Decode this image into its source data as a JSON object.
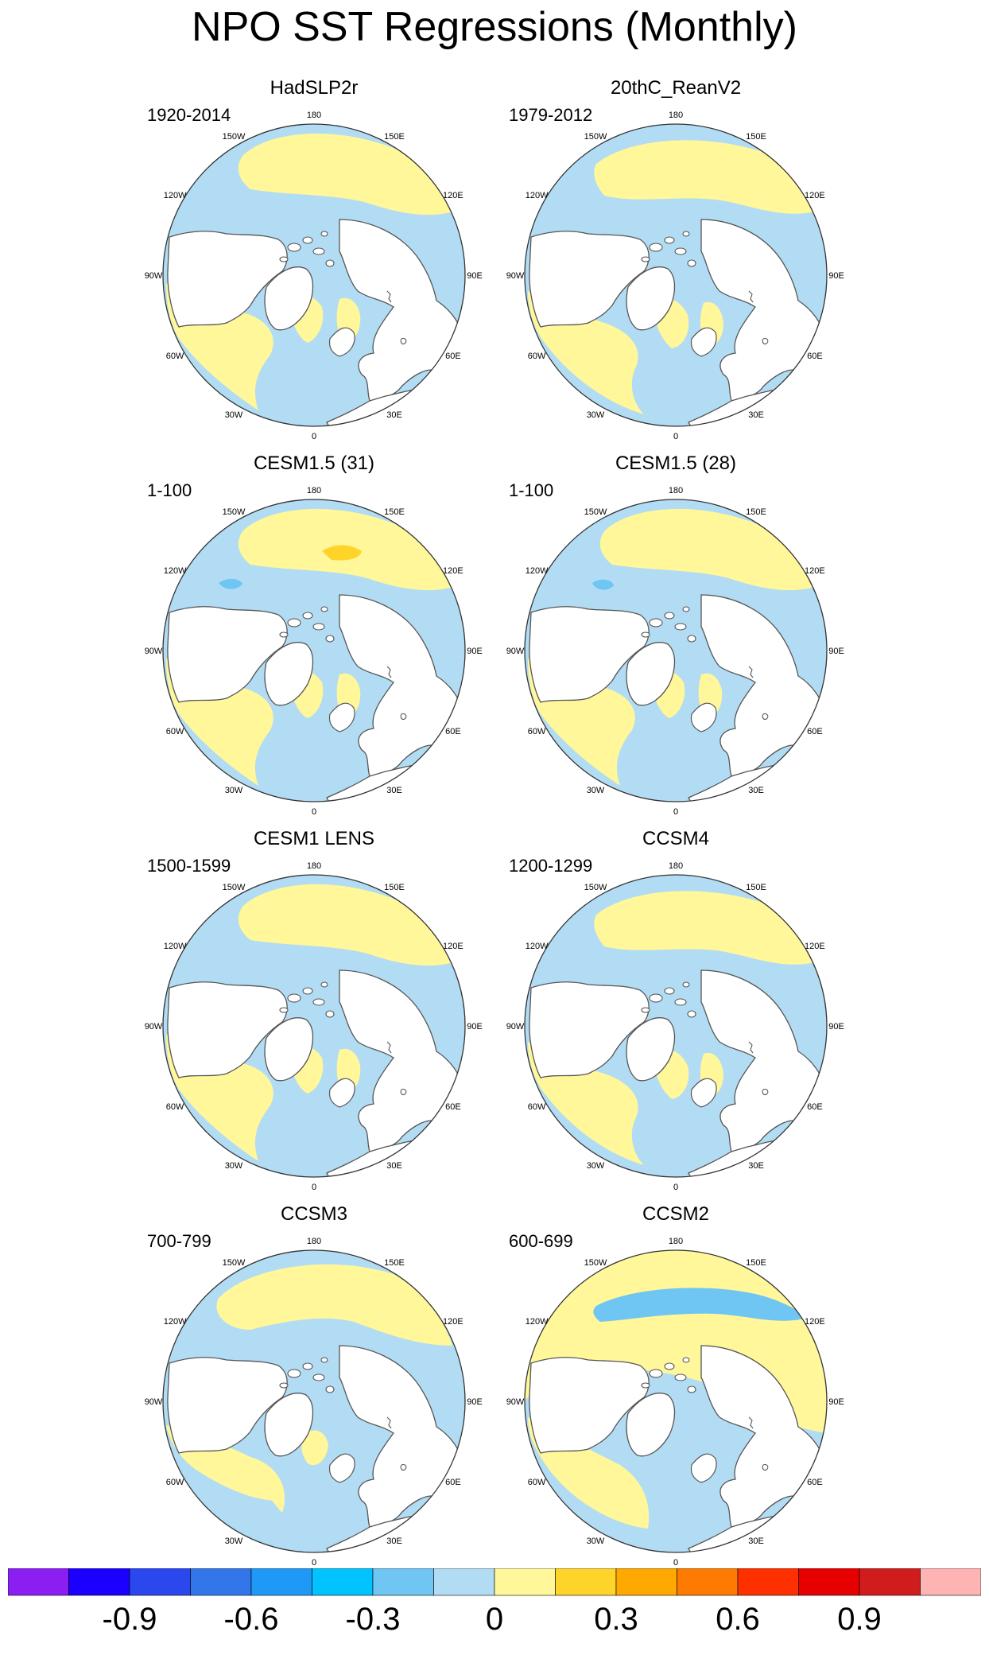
{
  "title": "NPO SST Regressions (Monthly)",
  "colors": {
    "ocean_neg": "#b2dcf3",
    "ocean_pos": "#fff79a",
    "neg_strong": "#6fc6f2",
    "pos_strong": "#ffd42a",
    "pos_stronger": "#ffa800",
    "land": "#ffffff",
    "coast": "#555555"
  },
  "lon_labels": [
    "180",
    "150E",
    "120E",
    "90E",
    "60E",
    "30E",
    "0",
    "30W",
    "60W",
    "90W",
    "120W",
    "150W"
  ],
  "panels": [
    {
      "id": "hadslp2r",
      "title": "HadSLP2r",
      "period": "1920-2014",
      "pattern": "A"
    },
    {
      "id": "20thc",
      "title": "20thC_ReanV2",
      "period": "1979-2012",
      "pattern": "B"
    },
    {
      "id": "cesm15-31",
      "title": "CESM1.5 (31)",
      "period": "1-100",
      "pattern": "C"
    },
    {
      "id": "cesm15-28",
      "title": "CESM1.5 (28)",
      "period": "1-100",
      "pattern": "D"
    },
    {
      "id": "cesm1-lens",
      "title": "CESM1 LENS",
      "period": "1500-1599",
      "pattern": "A"
    },
    {
      "id": "ccsm4",
      "title": "CCSM4",
      "period": "1200-1299",
      "pattern": "B"
    },
    {
      "id": "ccsm3",
      "title": "CCSM3",
      "period": "700-799",
      "pattern": "E"
    },
    {
      "id": "ccsm2",
      "title": "CCSM2",
      "period": "600-699",
      "pattern": "F"
    }
  ],
  "colorbar": {
    "colors": [
      "#8b1ff2",
      "#1c00ff",
      "#2a48ee",
      "#3276ea",
      "#1e9af6",
      "#00c3ff",
      "#6fc6f2",
      "#b2dcf3",
      "#fff79a",
      "#ffd42a",
      "#ffa800",
      "#ff7a00",
      "#ff3000",
      "#e60000",
      "#d01c1c",
      "#ffb4b4"
    ],
    "labels": [
      {
        "text": "-0.9",
        "index": 2
      },
      {
        "text": "-0.6",
        "index": 4
      },
      {
        "text": "-0.3",
        "index": 6
      },
      {
        "text": "0",
        "index": 8
      },
      {
        "text": "0.3",
        "index": 10
      },
      {
        "text": "0.6",
        "index": 12
      },
      {
        "text": "0.9",
        "index": 14
      }
    ]
  }
}
